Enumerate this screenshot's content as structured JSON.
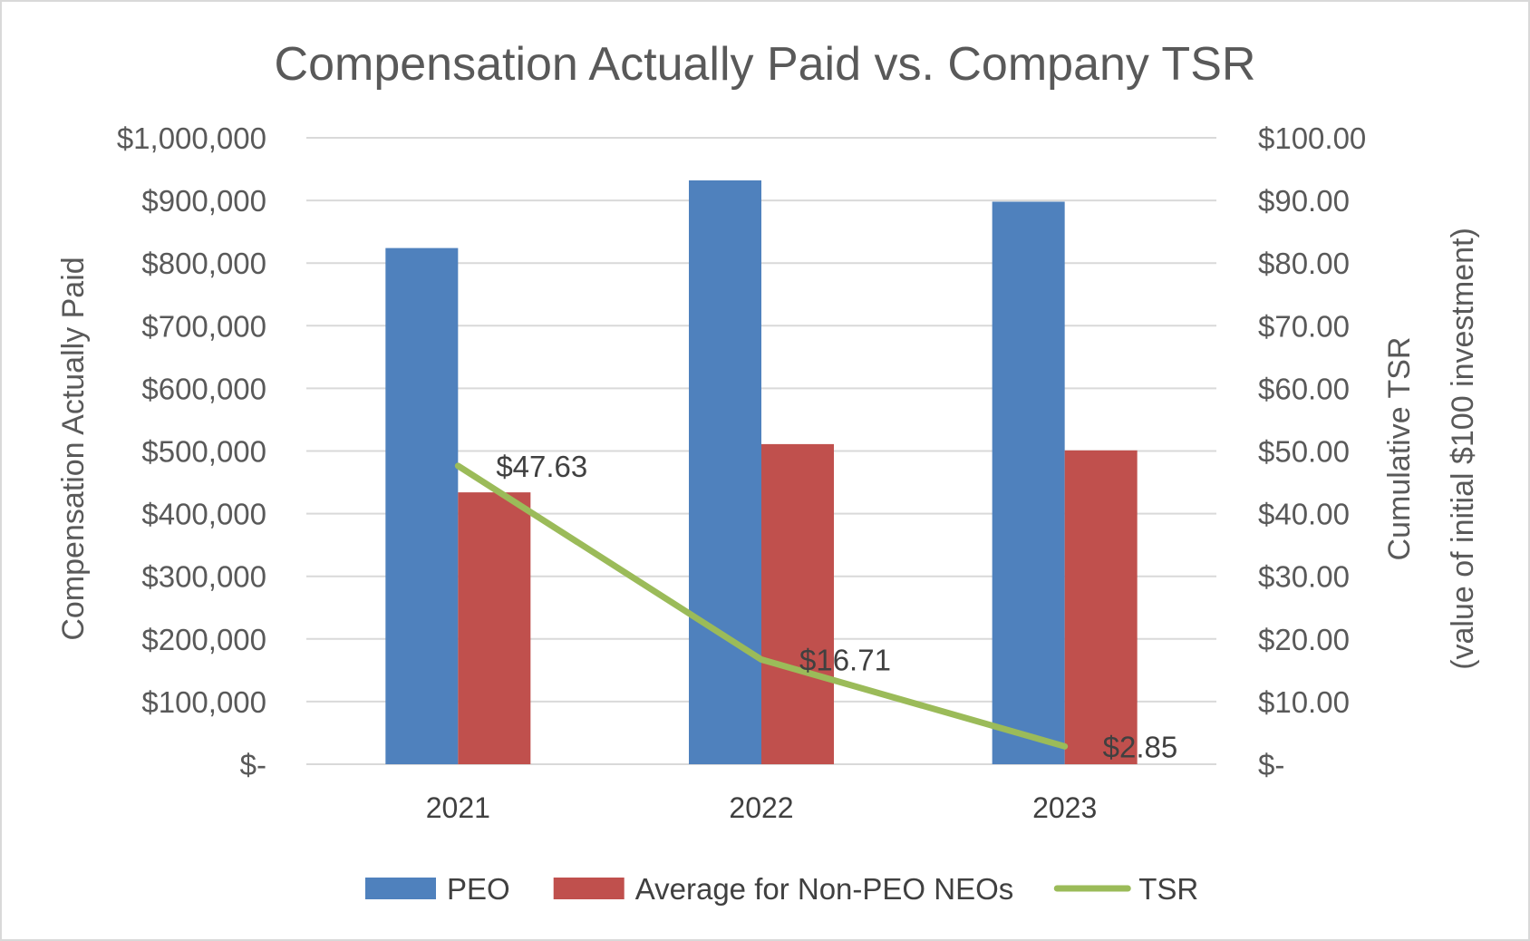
{
  "chart_data": {
    "type": "bar",
    "title": "Compensation Actually Paid vs. Company TSR",
    "categories": [
      "2021",
      "2022",
      "2023"
    ],
    "series": [
      {
        "name": "PEO",
        "type": "bar",
        "axis": "left",
        "color": "#4F81BD",
        "values": [
          824000,
          932000,
          898000
        ]
      },
      {
        "name": "Average for Non-PEO NEOs",
        "type": "bar",
        "axis": "left",
        "color": "#C0504D",
        "values": [
          434000,
          511000,
          501000
        ]
      },
      {
        "name": "TSR",
        "type": "line",
        "axis": "right",
        "color": "#9BBB59",
        "values": [
          47.63,
          16.71,
          2.85
        ],
        "labels": [
          "$47.63",
          "$16.71",
          "$2.85"
        ]
      }
    ],
    "ylabel": "Compensation Actually Paid",
    "ylabel2_line1": "Cumulative TSR",
    "ylabel2_line2": "(value of initial $100 investment)",
    "ylim": [
      0,
      1000000
    ],
    "ylim2": [
      0,
      100
    ],
    "y_ticks": [
      "$-",
      "$100,000",
      "$200,000",
      "$300,000",
      "$400,000",
      "$500,000",
      "$600,000",
      "$700,000",
      "$800,000",
      "$900,000",
      "$1,000,000"
    ],
    "y2_ticks": [
      "$-",
      "$10.00",
      "$20.00",
      "$30.00",
      "$40.00",
      "$50.00",
      "$60.00",
      "$70.00",
      "$80.00",
      "$90.00",
      "$100.00"
    ],
    "grid": true,
    "legend_position": "bottom",
    "colors": {
      "text": "#595959",
      "grid": "#D9D9D9",
      "border": "#D9D9D9"
    }
  }
}
